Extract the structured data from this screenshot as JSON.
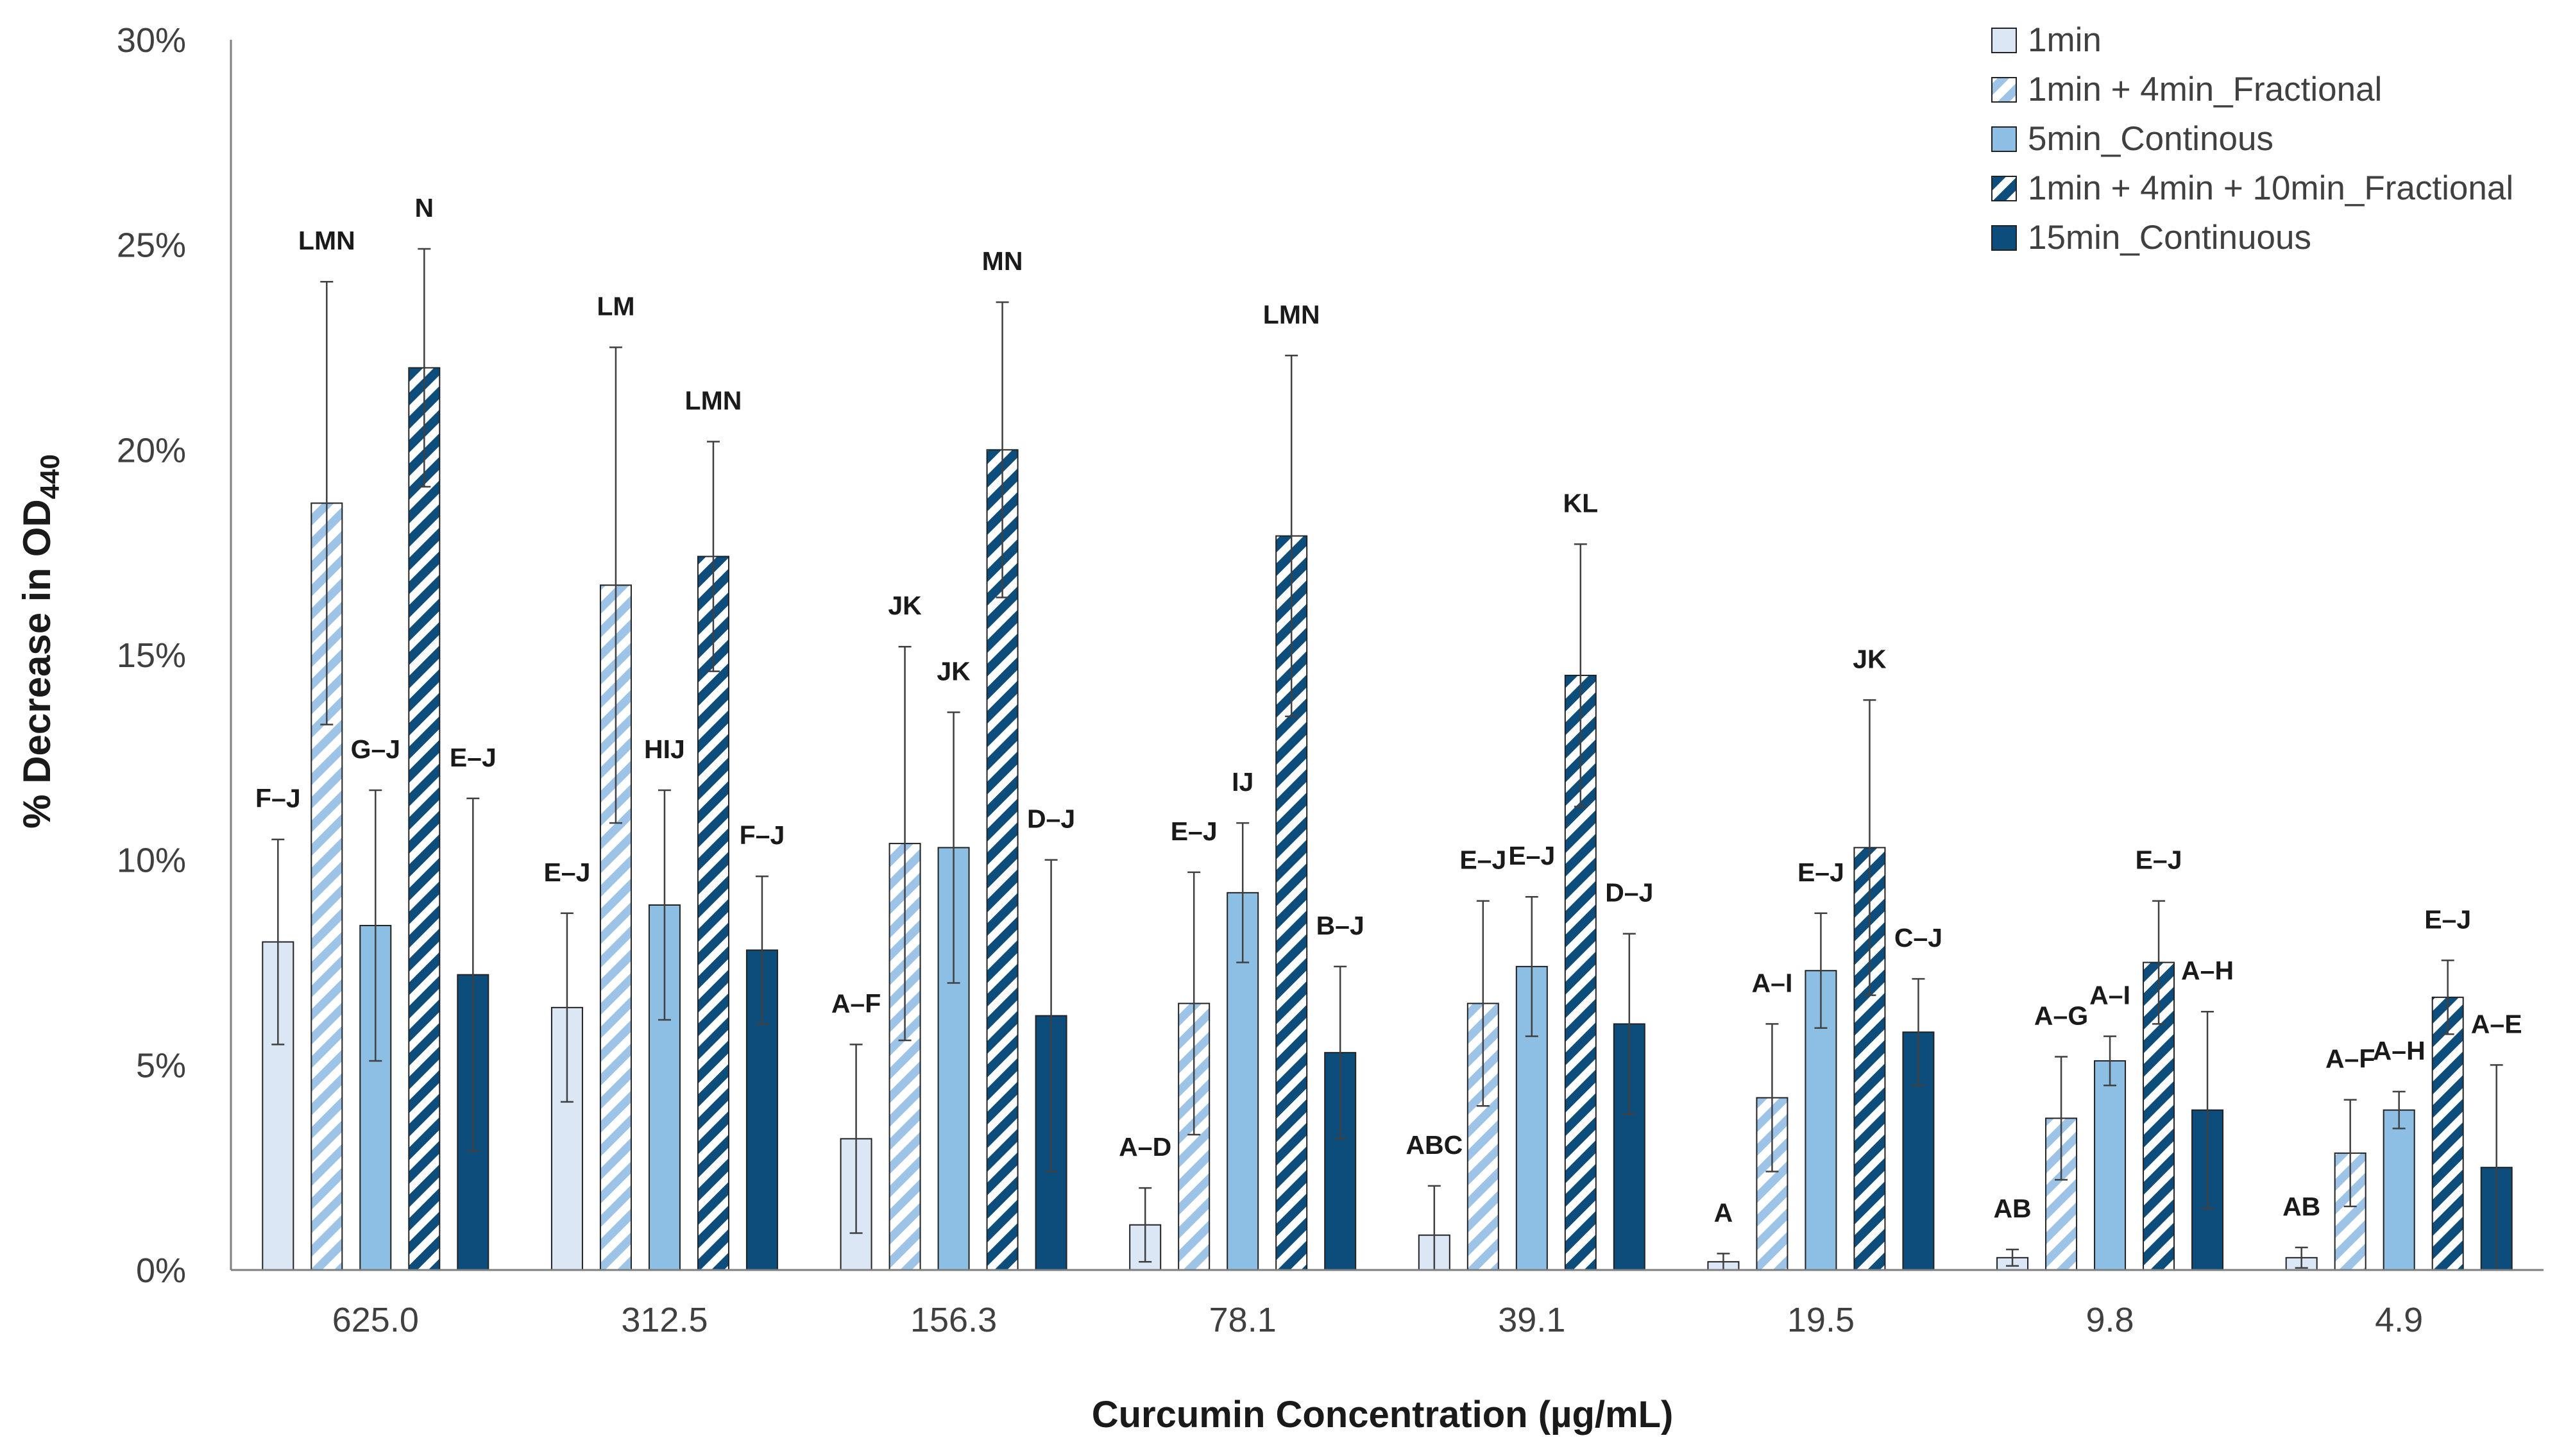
{
  "chart_data": {
    "type": "bar",
    "title": "",
    "ylabel": "% Decrease in OD",
    "ylabel_subscript": "440",
    "xlabel": "Curcumin Concentration  (µg/mL)",
    "ylim": [
      0,
      30
    ],
    "yticks": [
      "0%",
      "5%",
      "10%",
      "15%",
      "20%",
      "25%",
      "30%"
    ],
    "categories": [
      "625.0",
      "312.5",
      "156.3",
      "78.1",
      "39.1",
      "19.5",
      "9.8",
      "4.9"
    ],
    "legend_position": "top-right",
    "series": [
      {
        "name": "1min",
        "fill": "#dbe7f5",
        "stroke": "#222222",
        "pattern": "solid",
        "values": [
          8.0,
          6.4,
          3.2,
          1.1,
          0.85,
          0.2,
          0.3,
          0.3
        ],
        "errors": [
          2.5,
          2.3,
          2.3,
          0.9,
          1.2,
          0.2,
          0.2,
          0.25
        ],
        "labels": [
          "F–J",
          "E–J",
          "A–F",
          "A–D",
          "ABC",
          "A",
          "AB",
          "AB"
        ]
      },
      {
        "name": "1min + 4min_Fractional",
        "fill": "#9dc3e6",
        "stroke": "#222222",
        "pattern": "hatch-light",
        "values": [
          18.7,
          16.7,
          10.4,
          6.5,
          6.5,
          4.2,
          3.7,
          2.85
        ],
        "errors": [
          5.4,
          5.8,
          4.8,
          3.2,
          2.5,
          1.8,
          1.5,
          1.3
        ],
        "labels": [
          "LMN",
          "LM",
          "JK",
          "E–J",
          "E–J",
          "A–I",
          "A–G",
          "A–F"
        ]
      },
      {
        "name": "5min_Continous",
        "fill": "#8dbfe4",
        "stroke": "#222222",
        "pattern": "solid",
        "values": [
          8.4,
          8.9,
          10.3,
          9.2,
          7.4,
          7.3,
          5.1,
          3.9
        ],
        "errors": [
          3.3,
          2.8,
          3.3,
          1.7,
          1.7,
          1.4,
          0.6,
          0.45
        ],
        "labels": [
          "G–J",
          "HIJ",
          "JK",
          "IJ",
          "E–J",
          "E–J",
          "A–I",
          "A–H"
        ]
      },
      {
        "name": "1min + 4min + 10min_Fractional",
        "fill": "#0d4d7c",
        "stroke": "#222222",
        "pattern": "hatch-dark",
        "values": [
          22.0,
          17.4,
          20.0,
          17.9,
          14.5,
          10.3,
          7.5,
          6.65
        ],
        "errors": [
          2.9,
          2.8,
          3.6,
          4.4,
          3.2,
          3.6,
          1.5,
          0.9
        ],
        "labels": [
          "N",
          "LMN",
          "MN",
          "LMN",
          "KL",
          "JK",
          "E–J",
          "E–J"
        ]
      },
      {
        "name": "15min_Continuous",
        "fill": "#0d4d7c",
        "stroke": "#222222",
        "pattern": "solid",
        "values": [
          7.2,
          7.8,
          6.2,
          5.3,
          6.0,
          5.8,
          3.9,
          2.5
        ],
        "errors": [
          4.3,
          1.8,
          3.8,
          2.1,
          2.2,
          1.3,
          2.4,
          2.5
        ],
        "labels": [
          "E–J",
          "F–J",
          "D–J",
          "B–J",
          "D–J",
          "C–J",
          "A–H",
          "A–E"
        ]
      }
    ]
  }
}
